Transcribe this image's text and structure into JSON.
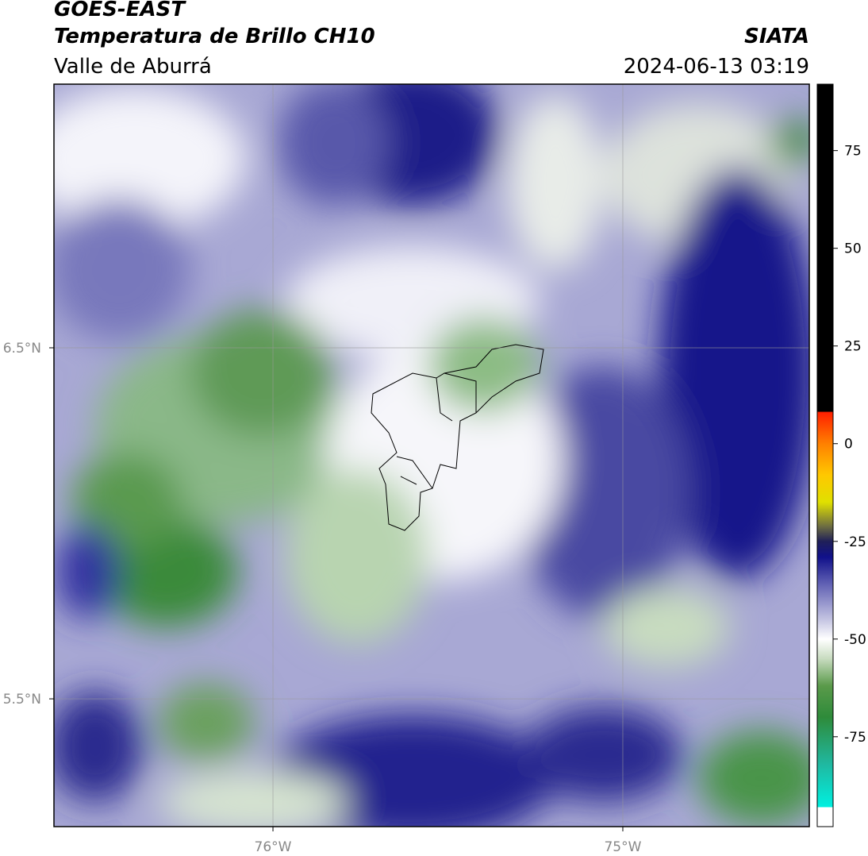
{
  "header": {
    "title": "GOES-EAST",
    "subtitle": "Temperatura de Brillo CH10",
    "region": "Valle de Aburrá",
    "source": "SIATA",
    "datetime": "2024-06-13 03:19"
  },
  "map": {
    "xlim": [
      -76.626,
      -74.467
    ],
    "ylim": [
      5.136,
      7.251
    ],
    "xticks": [
      {
        "value": -76,
        "label": "76°W"
      },
      {
        "value": -75,
        "label": "75°W"
      }
    ],
    "yticks": [
      {
        "value": 6.5,
        "label": "6.5°N"
      },
      {
        "value": 5.5,
        "label": "5.5°N"
      }
    ],
    "grid": true
  },
  "colorbar": {
    "clim": [
      -98,
      92
    ],
    "ticks": [
      75,
      50,
      25,
      0,
      -25,
      -50,
      -75
    ],
    "stops": [
      {
        "value": -98,
        "color": "#ffffff"
      },
      {
        "value": -93,
        "color": "#ffffff"
      },
      {
        "value": -93,
        "color": "#00f0e0"
      },
      {
        "value": -82,
        "color": "#20b8a0"
      },
      {
        "value": -70,
        "color": "#2e8b3a"
      },
      {
        "value": -62,
        "color": "#5a9a4a"
      },
      {
        "value": -55,
        "color": "#c8dcc0"
      },
      {
        "value": -50,
        "color": "#ffffff"
      },
      {
        "value": -45,
        "color": "#c4c4e2"
      },
      {
        "value": -36,
        "color": "#6262b4"
      },
      {
        "value": -29,
        "color": "#10108a"
      },
      {
        "value": -25,
        "color": "#202058"
      },
      {
        "value": -21,
        "color": "#707040"
      },
      {
        "value": -15,
        "color": "#e0e000"
      },
      {
        "value": -8,
        "color": "#ffc800"
      },
      {
        "value": 0,
        "color": "#ff8000"
      },
      {
        "value": 8,
        "color": "#ff2000"
      },
      {
        "value": 8.3,
        "color": "#000000"
      },
      {
        "value": 92,
        "color": "#000000"
      }
    ]
  }
}
